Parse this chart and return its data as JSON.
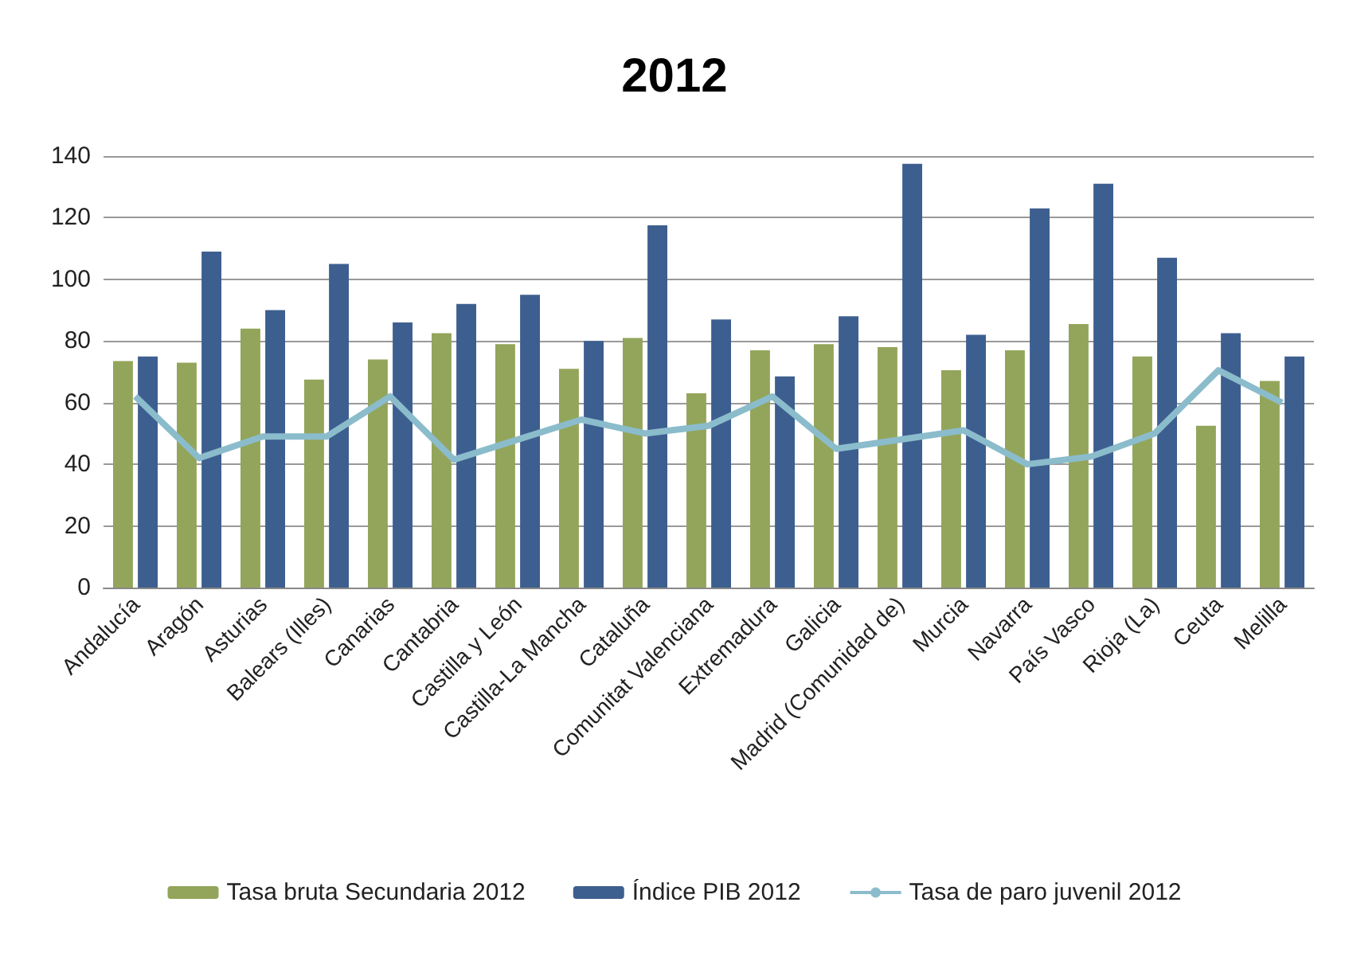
{
  "chart_data": {
    "type": "bar",
    "title": "2012",
    "categories": [
      "Andalucía",
      "Aragón",
      "Asturias",
      "Balears (Illes)",
      "Canarias",
      "Cantabria",
      "Castilla y León",
      "Castilla-La Mancha",
      "Cataluña",
      "Comunitat Valenciana",
      "Extremadura",
      "Galicia",
      "Madrid (Comunidad de)",
      "Murcia",
      "Navarra",
      "País Vasco",
      "Rioja (La)",
      "Ceuta",
      "Melilla"
    ],
    "series": [
      {
        "name": "Tasa bruta Secundaria 2012",
        "color": "#93a55a",
        "values": [
          73.5,
          73,
          84,
          67.5,
          74,
          82.5,
          79,
          71,
          81,
          63,
          77,
          79,
          78,
          70.5,
          77,
          85.5,
          75,
          52.5,
          67
        ]
      },
      {
        "name": "Índice PIB 2012",
        "color": "#3d5f8f",
        "values": [
          75,
          109,
          90,
          105,
          86,
          92,
          95,
          80,
          117.5,
          87,
          68.5,
          88,
          137.5,
          82,
          123,
          131,
          107,
          82.5,
          75
        ]
      },
      {
        "name": "Tasa de paro juvenil 2012",
        "type": "line",
        "color": "#8bbccc",
        "values": [
          62,
          42,
          49,
          49,
          62,
          41.5,
          48,
          54.5,
          50,
          52.5,
          62,
          45,
          48,
          51,
          40,
          42.5,
          50,
          70.5,
          60
        ]
      }
    ],
    "ylim": [
      0,
      140
    ],
    "yticks": [
      0,
      20,
      40,
      60,
      80,
      100,
      120,
      140
    ],
    "grid": "y",
    "legend": "bottom",
    "marker": "none"
  }
}
